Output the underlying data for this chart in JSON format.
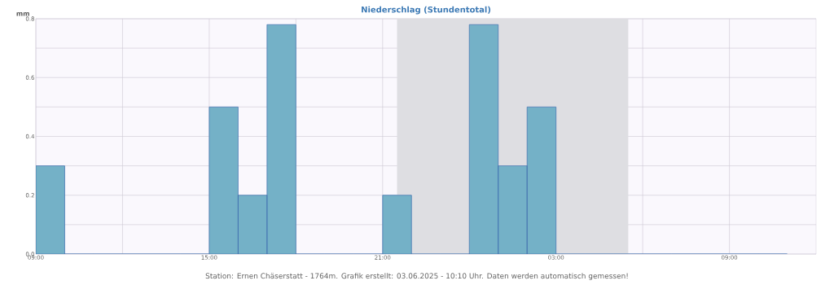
{
  "chart_data": {
    "type": "histogram",
    "title": "Niederschlag (Stundentotal)",
    "ylabel": "mm",
    "bins": [
      "2025-06-02T09:00",
      "2025-06-02T10:00",
      "2025-06-02T11:00",
      "2025-06-02T12:00",
      "2025-06-02T13:00",
      "2025-06-02T14:00",
      "2025-06-02T15:00",
      "2025-06-02T16:00",
      "2025-06-02T17:00",
      "2025-06-02T18:00",
      "2025-06-02T19:00",
      "2025-06-02T20:00",
      "2025-06-02T21:00",
      "2025-06-02T22:00",
      "2025-06-02T23:00",
      "2025-06-03T00:00",
      "2025-06-03T01:00",
      "2025-06-03T02:00",
      "2025-06-03T03:00",
      "2025-06-03T04:00",
      "2025-06-03T05:00",
      "2025-06-03T06:00",
      "2025-06-03T07:00",
      "2025-06-03T08:00",
      "2025-06-03T09:00",
      "2025-06-03T10:00",
      "2025-06-03T11:00"
    ],
    "values": [
      0.3,
      0,
      0,
      0,
      0,
      0,
      0.5,
      0.2,
      0.78,
      0,
      0,
      0,
      0.2,
      0,
      0,
      0.78,
      0.3,
      0.5,
      0,
      0,
      0,
      0,
      0,
      0,
      0,
      0
    ],
    "color": "#74b1c7",
    "xlim": [
      "2025-06-02T09:00",
      "2025-06-03T12:00"
    ],
    "xticks": [
      {
        "value": "2025-06-02T09:00",
        "label": "09:00"
      },
      {
        "value": "2025-06-02T12:00",
        "label": null
      },
      {
        "value": "2025-06-02T15:00",
        "label": "15:00"
      },
      {
        "value": "2025-06-02T18:00",
        "label": null
      },
      {
        "value": "2025-06-02T21:00",
        "label": "21:00"
      },
      {
        "value": "2025-06-03T00:00",
        "label": null
      },
      {
        "value": "2025-06-03T03:00",
        "label": "03:00"
      },
      {
        "value": "2025-06-03T06:00",
        "label": null
      },
      {
        "value": "2025-06-03T09:00",
        "label": "09:00"
      }
    ],
    "ylim": [
      0,
      0.8
    ],
    "yticks": [
      {
        "value": 0,
        "label": "0.0"
      },
      {
        "value": 0.1,
        "label": null
      },
      0.2,
      {
        "value": 0.3,
        "label": null
      },
      0.4,
      {
        "value": 0.5,
        "label": null
      },
      0.6,
      {
        "value": 0.7,
        "label": null
      },
      0.8
    ],
    "grid": true,
    "bands": [
      {
        "axis": "x",
        "from": "2025-06-02T21:30",
        "to": "2025-06-03T05:30",
        "color": "#dedee2"
      }
    ],
    "annotations": [
      "Station: Ernen Chäserstatt - 1764m. Grafik erstellt: 03.06.2025 - 10:10 Uhr. Daten werden automatisch gemessen!"
    ]
  }
}
